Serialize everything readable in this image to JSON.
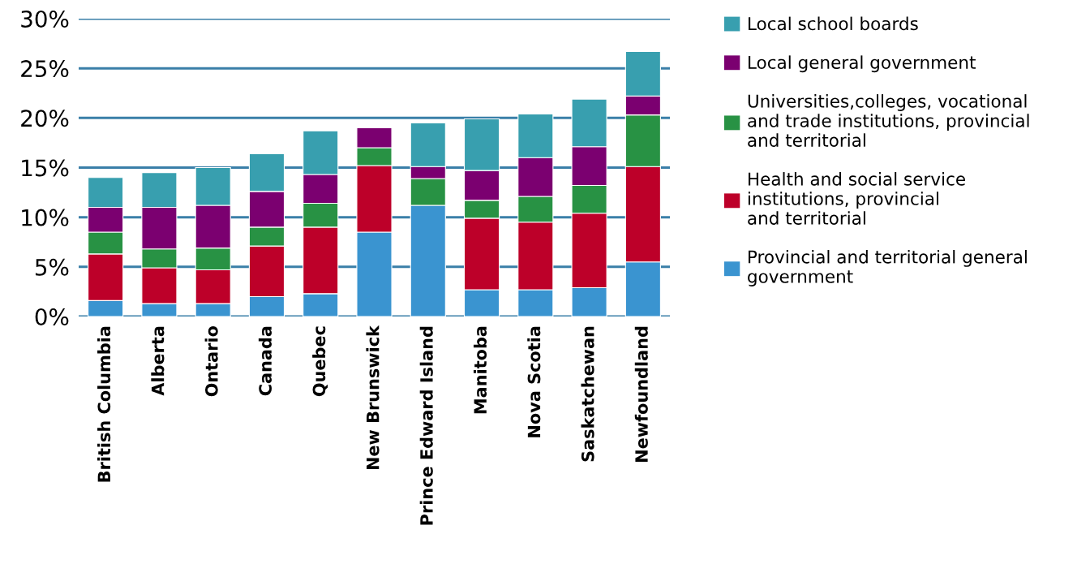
{
  "chart_data": {
    "type": "bar",
    "stacked": true,
    "categories": [
      "British Columbia",
      "Alberta",
      "Ontario",
      "Canada",
      "Quebec",
      "New Brunswick",
      "Prince Edward Island",
      "Manitoba",
      "Nova Scotia",
      "Saskatchewan",
      "Newfoundland"
    ],
    "series": [
      {
        "name": "Provincial and territorial general\ngovernment",
        "color": "#3a94d0",
        "values": [
          1.6,
          1.3,
          1.3,
          2.0,
          2.3,
          8.5,
          11.2,
          2.7,
          2.7,
          2.9,
          5.5
        ]
      },
      {
        "name": "Health and social service\ninstitutions, provincial\nand territorial",
        "color": "#bd0029",
        "values": [
          4.7,
          3.6,
          3.4,
          5.1,
          6.7,
          6.7,
          null,
          7.2,
          6.8,
          7.5,
          9.6
        ]
      },
      {
        "name": "Universities,colleges, vocational\nand trade institutions, provincial\nand territorial",
        "color": "#289244",
        "values": [
          2.2,
          1.9,
          2.2,
          1.9,
          2.4,
          1.8,
          2.7,
          1.8,
          2.6,
          2.8,
          5.2
        ]
      },
      {
        "name": "Local general government",
        "color": "#7b0070",
        "values": [
          2.5,
          4.2,
          4.3,
          3.6,
          2.9,
          2.0,
          1.2,
          3.0,
          3.9,
          3.9,
          1.9
        ]
      },
      {
        "name": "Local school boards",
        "color": "#389faf",
        "values": [
          3.0,
          3.5,
          3.8,
          3.8,
          4.4,
          null,
          4.4,
          5.2,
          4.4,
          4.8,
          4.5
        ]
      }
    ],
    "ylim": [
      0,
      30
    ],
    "yticks": [
      {
        "value": 0,
        "label": "0%"
      },
      {
        "value": 5,
        "label": "5%"
      },
      {
        "value": 10,
        "label": "10%"
      },
      {
        "value": 15,
        "label": "15%"
      },
      {
        "value": 20,
        "label": "20%"
      },
      {
        "value": 25,
        "label": "25%"
      },
      {
        "value": 30,
        "label": "30%"
      }
    ],
    "grid": "y",
    "legend": "right"
  }
}
